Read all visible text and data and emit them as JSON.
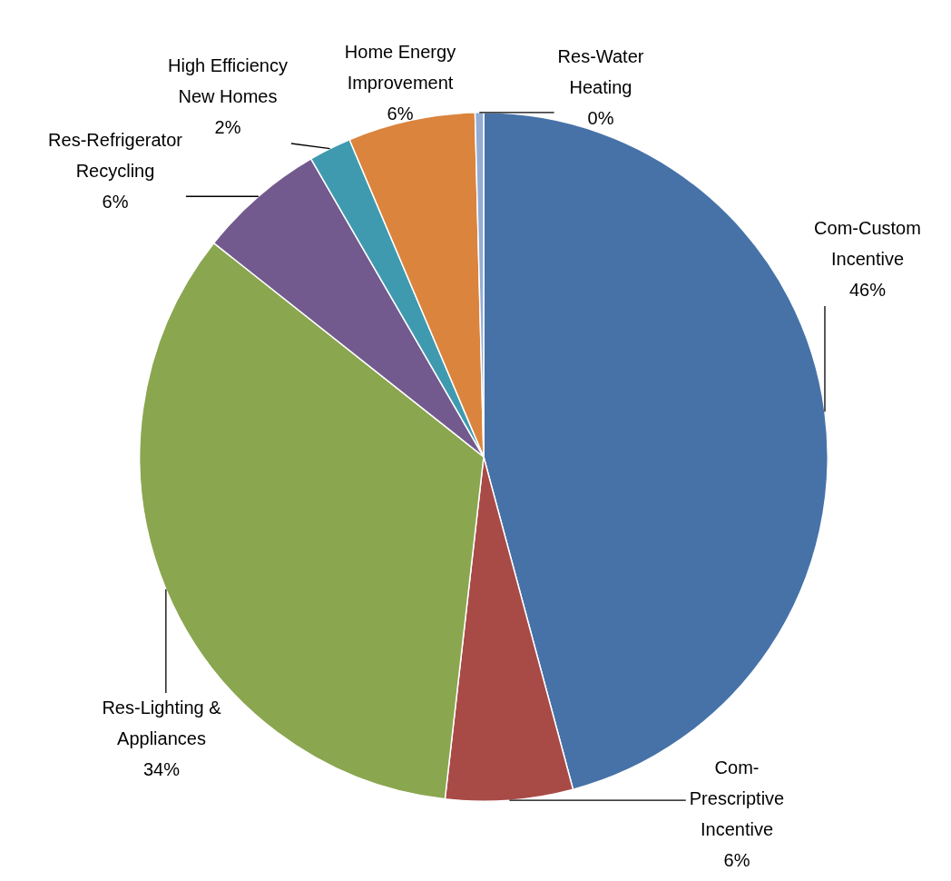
{
  "chart_data": {
    "type": "pie",
    "categories": [
      "Com-Custom Incentive",
      "Com-Prescriptive Incentive",
      "Res-Lighting & Appliances",
      "Res-Refrigerator Recycling",
      "High Efficiency New Homes",
      "Home Energy Improvement",
      "Res-Water Heating"
    ],
    "values": [
      46,
      6,
      34,
      6,
      2,
      6,
      0.4
    ],
    "colors": [
      "#4672a8",
      "#a84a46",
      "#8aa64f",
      "#725a8e",
      "#3f9ab0",
      "#db843d",
      "#93add6"
    ],
    "value_labels": [
      "46%",
      "6%",
      "34%",
      "6%",
      "2%",
      "6%",
      "0%"
    ],
    "legend": false
  }
}
